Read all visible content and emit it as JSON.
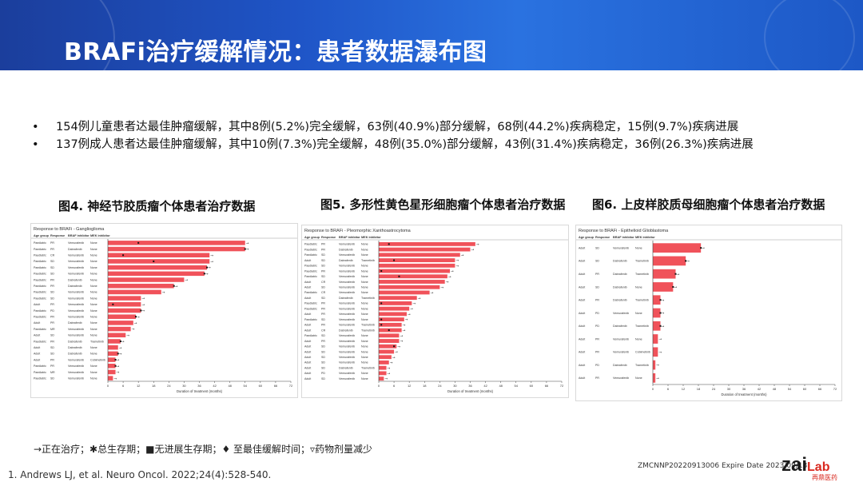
{
  "header": {
    "title": "BRAFi治疗缓解情况：患者数据瀑布图"
  },
  "bullets": [
    "154例儿童患者达最佳肿瘤缓解，其中8例(5.2%)完全缓解，63例(40.9%)部分缓解，68例(44.2%)疾病稳定，15例(9.7%)疾病进展",
    "137例成人患者达最佳肿瘤缓解，其中10例(7.3%)完全缓解，48例(35.0%)部分缓解，43例(31.4%)疾病稳定，36例(26.3%)疾病进展"
  ],
  "bullet_marker": "•",
  "figures": {
    "fig4": "图4. 神经节胶质瘤个体患者治疗数据",
    "fig5": "图5. 多形性黄色星形细胞瘤个体患者治疗数据",
    "fig6": "图6. 上皮样胶质母细胞瘤个体患者治疗数据"
  },
  "legend": "→正在治疗；✱总生存期；■无进展生存期；♦ 至最佳缓解时间；▿药物剂量减少",
  "reference": "1.   Andrews LJ, et al. Neuro Oncol. 2022;24(4):528-540.",
  "expire": "ZMCNNP20220913006 Expire Date 2023/09/13",
  "logo": {
    "main": "zai",
    "lab": "Lab",
    "sub": "再鼎医药"
  },
  "colors": {
    "bar": "#f0525a",
    "banner": "#1f55c7",
    "logo_red": "#d9281e"
  },
  "chart_data": [
    {
      "type": "bar",
      "orientation": "horizontal",
      "title": "Response to BRAFi - Ganglioglioma",
      "columns": [
        "Age group",
        "Response",
        "BRAF inhibitor",
        "MEK inhibitor"
      ],
      "xlabel": "Duration of treatment (months)",
      "xticks": [
        0,
        6,
        12,
        18,
        24,
        30,
        36,
        42,
        48,
        54,
        60,
        66,
        72
      ],
      "xlim": [
        0,
        72
      ],
      "rows": [
        {
          "age": "Paediatric",
          "response": "PR",
          "braf": "Vemurafenib",
          "mek": "None",
          "value": 54,
          "marker": 12
        },
        {
          "age": "Paediatric",
          "response": "PR",
          "braf": "Dabrafenib",
          "mek": "None",
          "value": 54,
          "marker": 54
        },
        {
          "age": "Paediatric",
          "response": "CR",
          "braf": "Vemurafenib",
          "mek": "None",
          "value": 40,
          "marker": 6
        },
        {
          "age": "Paediatric",
          "response": "SD",
          "braf": "Vemurafenib",
          "mek": "None",
          "value": 40,
          "marker": 18
        },
        {
          "age": "Paediatric",
          "response": "SD",
          "braf": "Vemurafenib",
          "mek": "None",
          "value": 39,
          "marker": 39
        },
        {
          "age": "Paediatric",
          "response": "SD",
          "braf": "Vemurafenib",
          "mek": "None",
          "value": 38,
          "marker": 38
        },
        {
          "age": "Paediatric",
          "response": "PR",
          "braf": "Dabrafenib",
          "mek": "None",
          "value": 30,
          "marker": null
        },
        {
          "age": "Paediatric",
          "response": "PR",
          "braf": "Dabrafenib",
          "mek": "None",
          "value": 26,
          "marker": 26
        },
        {
          "age": "Paediatric",
          "response": "SD",
          "braf": "Vemurafenib",
          "mek": "None",
          "value": 21,
          "marker": null
        },
        {
          "age": "Paediatric",
          "response": "SD",
          "braf": "Vemurafenib",
          "mek": "None",
          "value": 13,
          "marker": null
        },
        {
          "age": "Adult",
          "response": "PR",
          "braf": "Vemurafenib",
          "mek": "None",
          "value": 13,
          "marker": 2
        },
        {
          "age": "Paediatric",
          "response": "PD",
          "braf": "Vemurafenib",
          "mek": "None",
          "value": 13,
          "marker": 13
        },
        {
          "age": "Paediatric",
          "response": "PR",
          "braf": "Vemurafenib",
          "mek": "None",
          "value": 11,
          "marker": 11
        },
        {
          "age": "Adult",
          "response": "PR",
          "braf": "Dabrafenib",
          "mek": "None",
          "value": 10,
          "marker": null
        },
        {
          "age": "Paediatric",
          "response": "MR",
          "braf": "Vemurafenib",
          "mek": "None",
          "value": 9,
          "marker": null
        },
        {
          "age": "Adult",
          "response": "SD",
          "braf": "Vemurafenib",
          "mek": "None",
          "value": 7,
          "marker": null
        },
        {
          "age": "Paediatric",
          "response": "PR",
          "braf": "Dabrafenib",
          "mek": "Trametinib",
          "value": 5,
          "marker": 5
        },
        {
          "age": "Adult",
          "response": "SD",
          "braf": "Dabrafenib",
          "mek": "None",
          "value": 4,
          "marker": null
        },
        {
          "age": "Adult",
          "response": "SD",
          "braf": "Dabrafenib",
          "mek": "None",
          "value": 4,
          "marker": 4
        },
        {
          "age": "Adult",
          "response": "PR",
          "braf": "Vemurafenib",
          "mek": "Cobimetinib",
          "value": 3,
          "marker": 3
        },
        {
          "age": "Paediatric",
          "response": "PR",
          "braf": "Vemurafenib",
          "mek": "None",
          "value": 3,
          "marker": 3
        },
        {
          "age": "Paediatric",
          "response": "MR",
          "braf": "Vemurafenib",
          "mek": "None",
          "value": 3,
          "marker": null
        },
        {
          "age": "Paediatric",
          "response": "SD",
          "braf": "Vemurafenib",
          "mek": "None",
          "value": 2,
          "marker": null
        }
      ]
    },
    {
      "type": "bar",
      "orientation": "horizontal",
      "title": "Response to BRAFi - Pleomorphic Xanthoastrocytoma",
      "columns": [
        "Age group",
        "Response",
        "BRAF inhibitor",
        "MEK inhibitor"
      ],
      "xlabel": "Duration of treatment (months)",
      "xticks": [
        0,
        6,
        12,
        18,
        24,
        30,
        36,
        42,
        48,
        54,
        60,
        66,
        72
      ],
      "xlim": [
        0,
        72
      ],
      "rows": [
        {
          "age": "Paediatric",
          "response": "PR",
          "braf": "Vemurafenib",
          "mek": "None",
          "value": 38,
          "marker": 4
        },
        {
          "age": "Paediatric",
          "response": "PR",
          "braf": "Dabrafenib",
          "mek": "None",
          "value": 36,
          "marker": null
        },
        {
          "age": "Paediatric",
          "response": "SD",
          "braf": "Vemurafenib",
          "mek": "None",
          "value": 32,
          "marker": null
        },
        {
          "age": "Adult",
          "response": "SD",
          "braf": "Dabrafenib",
          "mek": "Trametinib",
          "value": 30,
          "marker": 6
        },
        {
          "age": "Paediatric",
          "response": "SD",
          "braf": "Vemurafenib",
          "mek": "None",
          "value": 30,
          "marker": null
        },
        {
          "age": "Paediatric",
          "response": "PR",
          "braf": "Vemurafenib",
          "mek": "None",
          "value": 28,
          "marker": 1
        },
        {
          "age": "Paediatric",
          "response": "SD",
          "braf": "Vemurafenib",
          "mek": "None",
          "value": 27,
          "marker": 8
        },
        {
          "age": "Adult",
          "response": "CR",
          "braf": "Vemurafenib",
          "mek": "None",
          "value": 26,
          "marker": null
        },
        {
          "age": "Adult",
          "response": "SD",
          "braf": "Vemurafenib",
          "mek": "None",
          "value": 24,
          "marker": null
        },
        {
          "age": "Paediatric",
          "response": "CR",
          "braf": "Vemurafenib",
          "mek": "None",
          "value": 20,
          "marker": null
        },
        {
          "age": "Adult",
          "response": "SD",
          "braf": "Dabrafenib",
          "mek": "Trametinib",
          "value": 15,
          "marker": null
        },
        {
          "age": "Paediatric",
          "response": "PR",
          "braf": "Vemurafenib",
          "mek": "None",
          "value": 13,
          "marker": 1
        },
        {
          "age": "Paediatric",
          "response": "PR",
          "braf": "Vemurafenib",
          "mek": "None",
          "value": 12,
          "marker": null
        },
        {
          "age": "Adult",
          "response": "PR",
          "braf": "Vemurafenib",
          "mek": "None",
          "value": 11,
          "marker": null
        },
        {
          "age": "Paediatric",
          "response": "SD",
          "braf": "Vemurafenib",
          "mek": "None",
          "value": 10,
          "marker": 1
        },
        {
          "age": "Adult",
          "response": "PR",
          "braf": "Vemurafenib",
          "mek": "Trametinib",
          "value": 9,
          "marker": 1
        },
        {
          "age": "Adult",
          "response": "CR",
          "braf": "Dabrafenib",
          "mek": "Trametinib",
          "value": 9,
          "marker": 4
        },
        {
          "age": "Paediatric",
          "response": "SD",
          "braf": "Vemurafenib",
          "mek": "None",
          "value": 8,
          "marker": null
        },
        {
          "age": "Adult",
          "response": "PR",
          "braf": "Vemurafenib",
          "mek": "None",
          "value": 8,
          "marker": null
        },
        {
          "age": "Adult",
          "response": "SD",
          "braf": "Vemurafenib",
          "mek": "None",
          "value": 7,
          "marker": 6
        },
        {
          "age": "Adult",
          "response": "SD",
          "braf": "Vemurafenib",
          "mek": "None",
          "value": 6,
          "marker": null
        },
        {
          "age": "Adult",
          "response": "SD",
          "braf": "Vemurafenib",
          "mek": "None",
          "value": 5,
          "marker": null
        },
        {
          "age": "Adult",
          "response": "SD",
          "braf": "Vemurafenib",
          "mek": "None",
          "value": 4,
          "marker": null
        },
        {
          "age": "Adult",
          "response": "SD",
          "braf": "Dabrafenib",
          "mek": "Trametinib",
          "value": 3,
          "marker": null
        },
        {
          "age": "Adult",
          "response": "PD",
          "braf": "Vemurafenib",
          "mek": "None",
          "value": 3,
          "marker": null
        },
        {
          "age": "Adult",
          "response": "SD",
          "braf": "Vemurafenib",
          "mek": "None",
          "value": 2,
          "marker": null
        }
      ]
    },
    {
      "type": "bar",
      "orientation": "horizontal",
      "title": "Response to BRAFi - Epithelioid Glioblastoma",
      "columns": [
        "Age group",
        "Response",
        "BRAF inhibitor",
        "MEK inhibitor"
      ],
      "xlabel": "Duration of treatment (months)",
      "xticks": [
        0,
        6,
        12,
        18,
        24,
        30,
        36,
        42,
        48,
        54,
        60,
        66,
        72
      ],
      "xlim": [
        0,
        72
      ],
      "rows": [
        {
          "age": "Adult",
          "response": "SD",
          "braf": "Vemurafenib",
          "mek": "None",
          "value": 19,
          "marker": 19
        },
        {
          "age": "Adult",
          "response": "SD",
          "braf": "Dabrafenib",
          "mek": "Trametinib",
          "value": 13,
          "marker": 13
        },
        {
          "age": "Adult",
          "response": "PR",
          "braf": "Dabrafenib",
          "mek": "Trametinib",
          "value": 9,
          "marker": 9
        },
        {
          "age": "Adult",
          "response": "SD",
          "braf": "Dabrafenib",
          "mek": "None",
          "value": 8,
          "marker": 8
        },
        {
          "age": "Adult",
          "response": "PR",
          "braf": "Dabrafenib",
          "mek": "Trametinib",
          "value": 3,
          "marker": 3
        },
        {
          "age": "Adult",
          "response": "PD",
          "braf": "Vemurafenib",
          "mek": "None",
          "value": 3,
          "marker": 3
        },
        {
          "age": "Adult",
          "response": "PD",
          "braf": "Dabrafenib",
          "mek": "Trametinib",
          "value": 3,
          "marker": 3
        },
        {
          "age": "Adult",
          "response": "PR",
          "braf": "Vemurafenib",
          "mek": "None",
          "value": 2,
          "marker": null
        },
        {
          "age": "Adult",
          "response": "PR",
          "braf": "Vemurafenib",
          "mek": "Cobimetinib",
          "value": 2,
          "marker": null
        },
        {
          "age": "Adult",
          "response": "PD",
          "braf": "Dabrafenib",
          "mek": "Trametinib",
          "value": 1,
          "marker": null
        },
        {
          "age": "Adult",
          "response": "PR",
          "braf": "Vemurafenib",
          "mek": "None",
          "value": 1,
          "marker": null
        }
      ]
    }
  ]
}
